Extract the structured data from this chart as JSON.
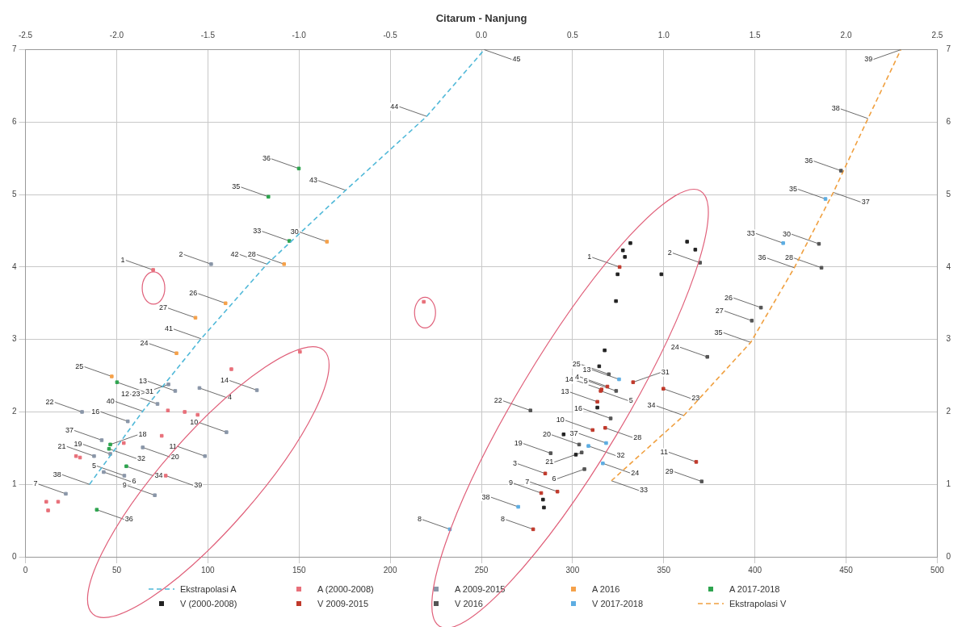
{
  "chart_data": {
    "type": "scatter",
    "title": "Citarum - Nanjung",
    "xlim": [
      0,
      500
    ],
    "xticks": [
      0,
      50,
      100,
      150,
      200,
      250,
      300,
      350,
      400,
      450,
      500
    ],
    "x2lim": [
      -2.5,
      2.5
    ],
    "x2ticks": [
      -2.5,
      {
        "value": -2,
        "label": "-2.0"
      },
      -1.5,
      {
        "value": -1,
        "label": "-1.0"
      },
      -0.5,
      {
        "value": 0,
        "label": "0.0"
      },
      0.5,
      {
        "value": 1,
        "label": "1.0"
      },
      1.5,
      {
        "value": 2,
        "label": "2.0"
      },
      2.5
    ],
    "ylim": [
      0,
      7
    ],
    "yticks": [
      0,
      1,
      2,
      3,
      4,
      5,
      6,
      7
    ],
    "y2lim": [
      0,
      7
    ],
    "y2ticks": [
      0,
      1,
      2,
      3,
      4,
      5,
      6,
      7
    ],
    "grid": true,
    "legend": "bottom",
    "marker": "square",
    "series": [
      {
        "name": "Ekstrapolasi A",
        "type": "line",
        "line_style": "dashed",
        "marker": "none",
        "color": "#4fb8d8",
        "x": [
          35.1,
          64.3,
          96.3,
          132.4,
          175.6,
          220,
          251.6
        ],
        "values": [
          1.0,
          2.01,
          3.01,
          4.04,
          5.06,
          6.08,
          7.0
        ]
      },
      {
        "name": "A (2000-2008)",
        "type": "scatter",
        "color": "#e8707a",
        "x": [
          11.4,
          17.9,
          12.4,
          27.7,
          29.9,
          53.9,
          74.7,
          78.1,
          87.3,
          94.4,
          112.9,
          150.5,
          70,
          218.4,
          76.9
        ],
        "values": [
          0.76,
          0.76,
          0.64,
          1.39,
          1.37,
          1.57,
          1.67,
          2.02,
          2.0,
          1.96,
          2.59,
          2.83,
          3.96,
          3.52,
          1.12
        ]
      },
      {
        "name": "A 2009-2015",
        "type": "scatter",
        "color": "#8a96a8",
        "x": [
          31,
          56.1,
          41.8,
          37.6,
          46.5,
          22.1,
          42.9,
          54.2,
          70.9,
          64.3,
          98.4,
          110.2,
          72.4,
          82.1,
          78.4,
          95.4,
          126.9,
          101.8
        ],
        "values": [
          2.0,
          1.87,
          1.61,
          1.39,
          1.42,
          0.87,
          1.17,
          1.12,
          0.85,
          1.51,
          1.39,
          1.72,
          2.11,
          2.29,
          2.38,
          2.33,
          2.3,
          4.04
        ]
      },
      {
        "name": "A 2016",
        "type": "scatter",
        "color": "#f5a14a",
        "x": [
          93.2,
          82.8,
          47.3,
          141.8,
          165.3,
          109.7
        ],
        "values": [
          3.3,
          2.81,
          2.49,
          4.04,
          4.35,
          3.5
        ]
      },
      {
        "name": "A 2017-2018",
        "type": "scatter",
        "color": "#2ea44f",
        "x": [
          50.2,
          46.5,
          45.8,
          39.1,
          55.3,
          144.7,
          133.2,
          149.9
        ],
        "values": [
          2.41,
          1.55,
          1.49,
          0.65,
          1.25,
          4.36,
          4.97,
          5.36
        ]
      },
      {
        "name": "V (2000-2008)",
        "type": "scatter",
        "color": "#222222",
        "x": [
          331.7,
          327.6,
          328.7,
          324.7,
          323.8,
          362.8,
          367.3,
          348.7,
          317.6,
          314.6,
          283.8,
          284.3,
          301.8,
          295.1,
          313.6
        ],
        "values": [
          4.33,
          4.23,
          4.14,
          3.9,
          3.53,
          4.35,
          4.24,
          3.9,
          2.85,
          2.63,
          0.79,
          0.68,
          1.41,
          1.69,
          2.06
        ]
      },
      {
        "name": "V 2009-2015",
        "type": "scatter",
        "color": "#c0392b",
        "x": [
          325.8,
          319.1,
          315.9,
          315.4,
          313.6,
          311,
          285,
          291.7,
          282.8,
          278.4,
          333.2,
          349.8,
          317.9,
          367.8
        ],
        "values": [
          4.0,
          2.35,
          2.31,
          2.29,
          2.14,
          1.75,
          1.15,
          0.9,
          0.88,
          0.38,
          2.41,
          2.32,
          1.78,
          1.31
        ]
      },
      {
        "name": "V 2016",
        "type": "scatter",
        "color": "#555555",
        "x": [
          369.9,
          319.9,
          320.9,
          303.6,
          288,
          276.9,
          323.9,
          305,
          306.5,
          447.2,
          435.1,
          436.5,
          403.3,
          398.3,
          373.9,
          370.8
        ],
        "values": [
          4.06,
          2.52,
          1.91,
          1.55,
          1.43,
          2.02,
          2.29,
          1.44,
          1.21,
          5.33,
          4.32,
          3.99,
          3.44,
          3.26,
          2.76,
          1.04
        ]
      },
      {
        "name": "V 2017-2018",
        "type": "scatter",
        "color": "#5dade2",
        "x": [
          232.7,
          270.2,
          325.5,
          318.4,
          308.7,
          316.6,
          415.5,
          438.7
        ],
        "values": [
          0.38,
          0.69,
          2.45,
          1.57,
          1.53,
          1.29,
          4.33,
          4.94
        ]
      },
      {
        "name": "Ekstrapolasi V",
        "type": "line",
        "line_style": "dashed",
        "marker": "none",
        "color": "#f0a040",
        "x": [
          321.3,
          361,
          397.7,
          421.6,
          443,
          462,
          480
        ],
        "values": [
          1.05,
          1.95,
          2.96,
          3.99,
          5.03,
          6.05,
          7.0
        ]
      }
    ],
    "annotations": [
      {
        "text": "1",
        "x": 70,
        "y": 3.96
      },
      {
        "text": "2",
        "x": 101.8,
        "y": 4.04
      },
      {
        "text": "26",
        "x": 109.7,
        "y": 3.5
      },
      {
        "text": "27",
        "x": 93.2,
        "y": 3.3
      },
      {
        "text": "41",
        "x": 96.3,
        "y": 3.01
      },
      {
        "text": "24",
        "x": 82.8,
        "y": 2.81
      },
      {
        "text": "25",
        "x": 47.3,
        "y": 2.49
      },
      {
        "text": "31",
        "x": 50.2,
        "y": 2.41
      },
      {
        "text": "40",
        "x": 64.3,
        "y": 2.01
      },
      {
        "text": "22",
        "x": 31,
        "y": 2.0
      },
      {
        "text": "16",
        "x": 56.1,
        "y": 1.87
      },
      {
        "text": "37",
        "x": 41.8,
        "y": 1.61
      },
      {
        "text": "18",
        "x": 46.5,
        "y": 1.55
      },
      {
        "text": "32",
        "x": 45.8,
        "y": 1.49
      },
      {
        "text": "21",
        "x": 37.6,
        "y": 1.39
      },
      {
        "text": "19",
        "x": 46.5,
        "y": 1.42
      },
      {
        "text": "7",
        "x": 22.1,
        "y": 0.87
      },
      {
        "text": "36",
        "x": 39.1,
        "y": 0.65
      },
      {
        "text": "38",
        "x": 35.1,
        "y": 1.0
      },
      {
        "text": "6",
        "x": 42.9,
        "y": 1.17
      },
      {
        "text": "34",
        "x": 55.3,
        "y": 1.25
      },
      {
        "text": "5",
        "x": 54.2,
        "y": 1.12
      },
      {
        "text": "9",
        "x": 70.9,
        "y": 0.85
      },
      {
        "text": "39",
        "x": 76.9,
        "y": 1.12
      },
      {
        "text": "20",
        "x": 64.3,
        "y": 1.51
      },
      {
        "text": "11",
        "x": 98.4,
        "y": 1.39
      },
      {
        "text": "10",
        "x": 110.2,
        "y": 1.72
      },
      {
        "text": "12",
        "x": 72.4,
        "y": 2.11
      },
      {
        "text": "13",
        "x": 82.1,
        "y": 2.29
      },
      {
        "text": "23",
        "x": 78.4,
        "y": 2.38
      },
      {
        "text": "4",
        "x": 95.4,
        "y": 2.33
      },
      {
        "text": "14",
        "x": 126.9,
        "y": 2.3
      },
      {
        "text": "42",
        "x": 132.4,
        "y": 4.04
      },
      {
        "text": "28",
        "x": 141.8,
        "y": 4.04
      },
      {
        "text": "33",
        "x": 144.7,
        "y": 4.36
      },
      {
        "text": "35",
        "x": 133.2,
        "y": 4.97
      },
      {
        "text": "36",
        "x": 149.9,
        "y": 5.36
      },
      {
        "text": "43",
        "x": 175.6,
        "y": 5.06
      },
      {
        "text": "30",
        "x": 165.3,
        "y": 4.35
      },
      {
        "text": "44",
        "x": 220,
        "y": 6.08
      },
      {
        "text": "45",
        "x": 251.6,
        "y": 7.0
      },
      {
        "text": "1",
        "x": 325.8,
        "y": 4.0
      },
      {
        "text": "2",
        "x": 369.9,
        "y": 4.06
      },
      {
        "text": "25",
        "x": 319.9,
        "y": 2.52
      },
      {
        "text": "4",
        "x": 319.1,
        "y": 2.35
      },
      {
        "text": "14",
        "x": 315.9,
        "y": 2.31
      },
      {
        "text": "5",
        "x": 315.4,
        "y": 2.29
      },
      {
        "text": "13",
        "x": 313.6,
        "y": 2.14
      },
      {
        "text": "16",
        "x": 320.9,
        "y": 1.91
      },
      {
        "text": "10",
        "x": 311,
        "y": 1.75
      },
      {
        "text": "20",
        "x": 303.6,
        "y": 1.55
      },
      {
        "text": "19",
        "x": 288,
        "y": 1.43
      },
      {
        "text": "3",
        "x": 285,
        "y": 1.15
      },
      {
        "text": "7",
        "x": 291.7,
        "y": 0.9
      },
      {
        "text": "9",
        "x": 282.8,
        "y": 0.88
      },
      {
        "text": "38",
        "x": 270.2,
        "y": 0.69
      },
      {
        "text": "8",
        "x": 278.4,
        "y": 0.38
      },
      {
        "text": "8",
        "x": 232.7,
        "y": 0.38
      },
      {
        "text": "22",
        "x": 276.9,
        "y": 2.02
      },
      {
        "text": "31",
        "x": 333.2,
        "y": 2.41
      },
      {
        "text": "23",
        "x": 349.8,
        "y": 2.32
      },
      {
        "text": "13",
        "x": 325.5,
        "y": 2.45
      },
      {
        "text": "5",
        "x": 323.9,
        "y": 2.29
      },
      {
        "text": "28",
        "x": 317.9,
        "y": 1.78
      },
      {
        "text": "37",
        "x": 318.4,
        "y": 1.57
      },
      {
        "text": "32",
        "x": 308.7,
        "y": 1.53
      },
      {
        "text": "21",
        "x": 305,
        "y": 1.44
      },
      {
        "text": "24",
        "x": 316.6,
        "y": 1.29
      },
      {
        "text": "6",
        "x": 306.5,
        "y": 1.21
      },
      {
        "text": "33",
        "x": 321.3,
        "y": 1.05
      },
      {
        "text": "34",
        "x": 361,
        "y": 1.95
      },
      {
        "text": "11",
        "x": 367.8,
        "y": 1.31
      },
      {
        "text": "29",
        "x": 370.8,
        "y": 1.04
      },
      {
        "text": "24",
        "x": 373.9,
        "y": 2.76
      },
      {
        "text": "35",
        "x": 397.7,
        "y": 2.96
      },
      {
        "text": "27",
        "x": 398.3,
        "y": 3.26
      },
      {
        "text": "26",
        "x": 403.3,
        "y": 3.44
      },
      {
        "text": "33",
        "x": 415.5,
        "y": 4.33
      },
      {
        "text": "36",
        "x": 421.6,
        "y": 3.99
      },
      {
        "text": "28",
        "x": 436.5,
        "y": 3.99
      },
      {
        "text": "30",
        "x": 435.1,
        "y": 4.32
      },
      {
        "text": "35",
        "x": 438.7,
        "y": 4.94
      },
      {
        "text": "37",
        "x": 443,
        "y": 5.03
      },
      {
        "text": "36",
        "x": 447.2,
        "y": 5.33
      },
      {
        "text": "38",
        "x": 462,
        "y": 6.05
      },
      {
        "text": "39",
        "x": 480,
        "y": 7.0
      }
    ]
  }
}
